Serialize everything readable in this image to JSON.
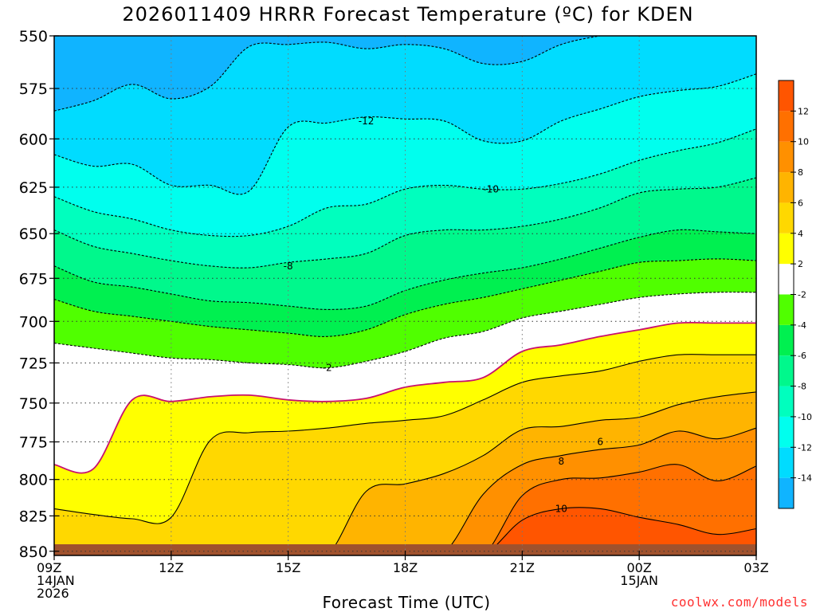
{
  "title": "2026011409 HRRR Forecast Temperature (ºC) for KDEN",
  "xlabel": "Forecast Time (UTC)",
  "credit": "coolwx.com/models",
  "chart_data": {
    "type": "heatmap",
    "title": "2026011409 HRRR Forecast Temperature (ºC) for KDEN",
    "xlabel": "Forecast Time (UTC)",
    "ylabel": "",
    "x_ticks": [
      {
        "hour": 0,
        "lines": [
          "09Z",
          "14JAN",
          "2026"
        ]
      },
      {
        "hour": 3,
        "lines": [
          "12Z"
        ]
      },
      {
        "hour": 6,
        "lines": [
          "15Z"
        ]
      },
      {
        "hour": 9,
        "lines": [
          "18Z"
        ]
      },
      {
        "hour": 12,
        "lines": [
          "21Z"
        ]
      },
      {
        "hour": 15,
        "lines": [
          "00Z",
          "15JAN"
        ]
      },
      {
        "hour": 18,
        "lines": [
          "03Z"
        ]
      }
    ],
    "xlim": [
      0,
      18
    ],
    "y_ticks": [
      550,
      575,
      600,
      625,
      650,
      675,
      700,
      725,
      750,
      775,
      800,
      825,
      850
    ],
    "ylim": [
      550,
      853
    ],
    "y_scale": "log-pressure",
    "grid": true,
    "colorbar": {
      "levels": [
        -16,
        -14,
        -12,
        -10,
        -8,
        -6,
        -4,
        -2,
        2,
        4,
        6,
        8,
        10,
        12,
        14
      ],
      "labels": [
        "-14",
        "-12",
        "-10",
        "-8",
        "-6",
        "-4",
        "-2",
        "2",
        "4",
        "6",
        "8",
        "10",
        "12"
      ],
      "colors": [
        "#10b4ff",
        "#00dcff",
        "#00ffee",
        "#00ffbe",
        "#00f88c",
        "#00f050",
        "#50ff00",
        "#ffffff",
        "#ffff00",
        "#ffd800",
        "#ffb400",
        "#ff9000",
        "#ff7000",
        "#ff5500"
      ]
    },
    "hours": [
      0,
      1,
      2,
      3,
      4,
      5,
      6,
      7,
      8,
      9,
      10,
      11,
      12,
      13,
      14,
      15,
      16,
      17,
      18
    ],
    "isotherms": [
      {
        "value": -14,
        "p": [
          586,
          581,
          573,
          580,
          574,
          555,
          554,
          553,
          556,
          554,
          556,
          563,
          562,
          554,
          550,
          548,
          546,
          546,
          546
        ]
      },
      {
        "value": -12,
        "p": [
          608,
          614,
          613,
          624,
          624,
          627,
          594,
          592,
          589,
          590,
          591,
          601,
          601,
          591,
          585,
          579,
          576,
          574,
          568
        ]
      },
      {
        "value": -10,
        "p": [
          630,
          638,
          642,
          648,
          651,
          651,
          646,
          636,
          634,
          626,
          624,
          626,
          626,
          623,
          618,
          611,
          606,
          602,
          595
        ]
      },
      {
        "value": -8,
        "p": [
          648,
          657,
          661,
          665,
          668,
          669,
          666,
          664,
          661,
          651,
          648,
          648,
          646,
          642,
          636,
          628,
          626,
          625,
          620
        ]
      },
      {
        "value": -6,
        "p": [
          668,
          677,
          680,
          684,
          688,
          689,
          691,
          693,
          691,
          682,
          676,
          672,
          669,
          664,
          658,
          652,
          648,
          649,
          650
        ]
      },
      {
        "value": -4,
        "p": [
          687,
          694,
          697,
          700,
          703,
          705,
          707,
          709,
          705,
          696,
          690,
          686,
          681,
          676,
          671,
          666,
          665,
          664,
          665
        ]
      },
      {
        "value": -2,
        "p": [
          713,
          716,
          719,
          722,
          723,
          725,
          726,
          728,
          724,
          718,
          710,
          706,
          698,
          694,
          690,
          686,
          684,
          683,
          683
        ]
      },
      {
        "value": 2,
        "p": [
          790,
          793,
          748,
          749,
          746,
          745,
          748,
          749,
          747,
          740,
          737,
          734,
          718,
          714,
          709,
          705,
          701,
          701,
          701
        ]
      },
      {
        "value": 4,
        "p": [
          820,
          824,
          827,
          826,
          774,
          769,
          768,
          766,
          763,
          761,
          758,
          748,
          737,
          733,
          730,
          724,
          720,
          720,
          720
        ]
      },
      {
        "value": 6,
        "p": [
          853,
          853,
          853,
          853,
          853,
          853,
          853,
          853,
          808,
          803,
          796,
          784,
          767,
          765,
          761,
          759,
          751,
          746,
          743
        ]
      },
      {
        "value": 8,
        "p": [
          853,
          853,
          853,
          853,
          853,
          853,
          853,
          853,
          853,
          853,
          851,
          810,
          790,
          784,
          780,
          777,
          768,
          773,
          766
        ]
      },
      {
        "value": 10,
        "p": [
          853,
          853,
          853,
          853,
          853,
          853,
          853,
          853,
          853,
          853,
          853,
          853,
          811,
          800,
          799,
          795,
          790,
          801,
          791
        ]
      },
      {
        "value": 12,
        "p": [
          853,
          853,
          853,
          853,
          853,
          853,
          853,
          853,
          853,
          853,
          853,
          853,
          828,
          820,
          820,
          826,
          831,
          838,
          834
        ]
      },
      {
        "value": 14,
        "p": [
          853,
          853,
          853,
          853,
          853,
          853,
          853,
          853,
          853,
          853,
          853,
          853,
          853,
          853,
          853,
          853,
          853,
          853,
          853
        ]
      }
    ],
    "contour_labels": [
      {
        "text": "-12",
        "hour": 8.0,
        "p": 591
      },
      {
        "text": "-10",
        "hour": 11.2,
        "p": 626
      },
      {
        "text": "-8",
        "hour": 6.0,
        "p": 668
      },
      {
        "text": "-2",
        "hour": 7.0,
        "p": 728
      },
      {
        "text": "6",
        "hour": 14.0,
        "p": 775
      },
      {
        "text": "8",
        "hour": 13.0,
        "p": 788
      },
      {
        "text": "10",
        "hour": 13.0,
        "p": 820
      }
    ],
    "terrain_color": "#a0522d"
  }
}
